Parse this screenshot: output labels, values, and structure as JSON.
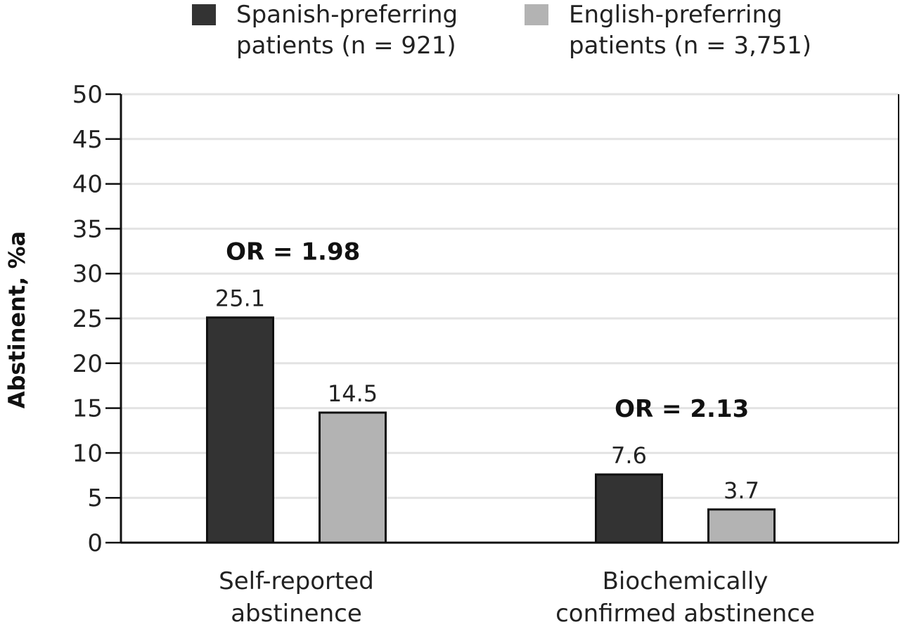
{
  "chart_data": {
    "type": "bar",
    "categories": [
      [
        "Self-reported",
        "abstinence"
      ],
      [
        "Biochemically",
        "confirmed abstinence"
      ]
    ],
    "series": [
      {
        "name": [
          "Spanish-preferring",
          "patients (n = 921)"
        ],
        "values": [
          25.1,
          7.6
        ],
        "color": "#333333"
      },
      {
        "name": [
          "English-preferring",
          "patients (n = 3,751)"
        ],
        "values": [
          14.5,
          3.7
        ],
        "color": "#b3b3b3"
      }
    ],
    "annotations": [
      "OR = 1.98",
      "OR = 2.13"
    ],
    "ylabel": "Abstinent, %a",
    "ylim": [
      0,
      50
    ],
    "yticks": [
      0,
      5,
      10,
      15,
      20,
      25,
      30,
      35,
      40,
      45,
      50
    ],
    "grid": true,
    "legend": "top"
  }
}
